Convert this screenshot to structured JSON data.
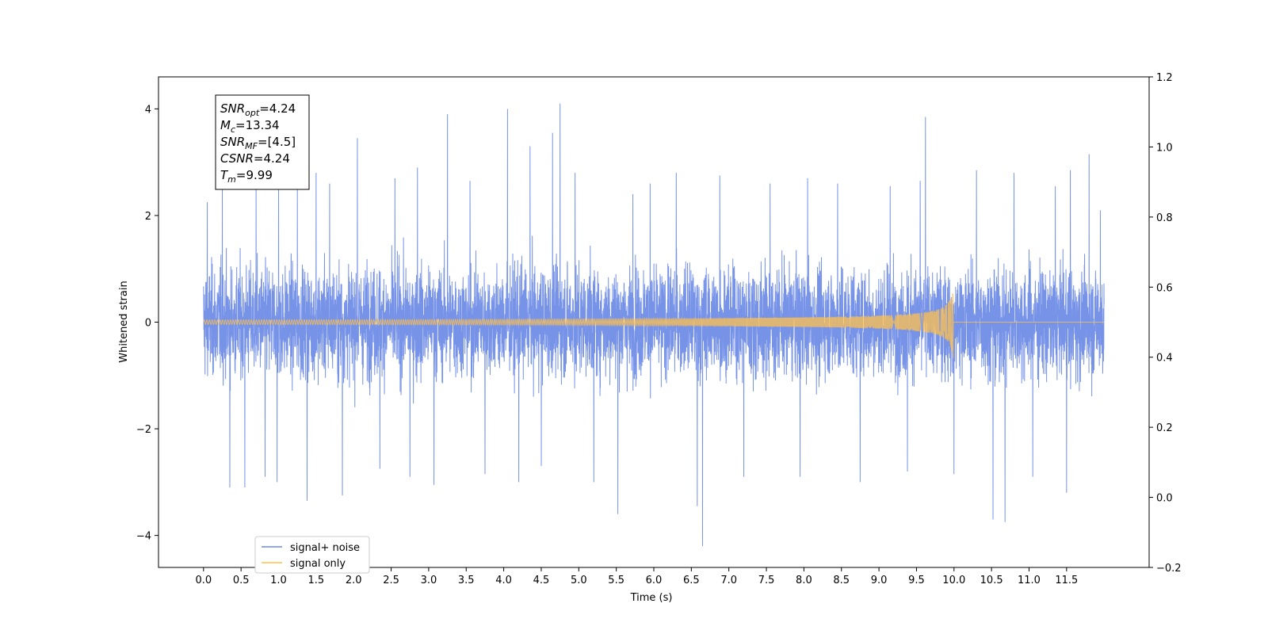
{
  "chart_data": {
    "type": "line",
    "title": "",
    "xlabel": "Time (s)",
    "ylabel": "Whitened strain",
    "xlim": [
      -0.6,
      12.6
    ],
    "ylim": [
      -4.6,
      4.6
    ],
    "y2lim": [
      -0.2,
      1.2
    ],
    "x_ticks": [
      0.0,
      0.5,
      1.0,
      1.5,
      2.0,
      2.5,
      3.0,
      3.5,
      4.0,
      4.5,
      5.0,
      5.5,
      6.0,
      6.5,
      7.0,
      7.5,
      8.0,
      8.5,
      9.0,
      9.5,
      10.0,
      10.5,
      11.0,
      11.5
    ],
    "x_tick_labels": [
      "0.0",
      "0.5",
      "1.0",
      "1.5",
      "2.0",
      "2.5",
      "3.0",
      "3.5",
      "4.0",
      "4.5",
      "5.0",
      "5.5",
      "6.0",
      "6.5",
      "7.0",
      "7.5",
      "8.0",
      "8.5",
      "9.0",
      "9.5",
      "10.0",
      "10.5",
      "11.0",
      "11.5"
    ],
    "y_ticks": [
      -4,
      -2,
      0,
      2,
      4
    ],
    "y_tick_labels": [
      "−4",
      "−2",
      "0",
      "2",
      "4"
    ],
    "y2_ticks": [
      -0.2,
      0.0,
      0.2,
      0.4,
      0.6,
      0.8,
      1.0,
      1.2
    ],
    "y2_tick_labels": [
      "−0.2",
      "0.0",
      "0.2",
      "0.4",
      "0.6",
      "0.8",
      "1.0",
      "1.2"
    ],
    "grid": false,
    "legend_position": "bottom-left",
    "series": [
      {
        "name": "signal+ noise",
        "color": "#6b8ae6",
        "x_range": [
          0.0,
          12.0
        ],
        "envelope_typical": 1.8,
        "spikes": [
          {
            "x": 0.05,
            "y": 2.25
          },
          {
            "x": 0.25,
            "y": 2.55
          },
          {
            "x": 0.35,
            "y": -3.1
          },
          {
            "x": 0.55,
            "y": -3.1
          },
          {
            "x": 0.7,
            "y": 2.6
          },
          {
            "x": 0.82,
            "y": -2.9
          },
          {
            "x": 0.98,
            "y": -3.0
          },
          {
            "x": 1.0,
            "y": 2.7
          },
          {
            "x": 1.25,
            "y": 2.6
          },
          {
            "x": 1.38,
            "y": -3.35
          },
          {
            "x": 1.5,
            "y": 2.8
          },
          {
            "x": 1.68,
            "y": 2.6
          },
          {
            "x": 1.85,
            "y": -3.25
          },
          {
            "x": 2.05,
            "y": 3.45
          },
          {
            "x": 2.35,
            "y": -2.75
          },
          {
            "x": 2.55,
            "y": 2.7
          },
          {
            "x": 2.75,
            "y": -2.9
          },
          {
            "x": 2.85,
            "y": 2.9
          },
          {
            "x": 3.07,
            "y": -3.05
          },
          {
            "x": 3.25,
            "y": 3.9
          },
          {
            "x": 3.55,
            "y": 2.65
          },
          {
            "x": 3.75,
            "y": -2.85
          },
          {
            "x": 4.05,
            "y": 4.0
          },
          {
            "x": 4.2,
            "y": -3.0
          },
          {
            "x": 4.35,
            "y": 3.3
          },
          {
            "x": 4.5,
            "y": -2.7
          },
          {
            "x": 4.65,
            "y": 3.55
          },
          {
            "x": 4.75,
            "y": 4.1
          },
          {
            "x": 4.95,
            "y": 2.8
          },
          {
            "x": 5.2,
            "y": -3.0
          },
          {
            "x": 5.52,
            "y": -3.6
          },
          {
            "x": 5.72,
            "y": 2.4
          },
          {
            "x": 5.95,
            "y": 2.6
          },
          {
            "x": 6.3,
            "y": 2.8
          },
          {
            "x": 6.58,
            "y": -3.45
          },
          {
            "x": 6.65,
            "y": -4.2
          },
          {
            "x": 6.88,
            "y": 2.75
          },
          {
            "x": 7.2,
            "y": -2.9
          },
          {
            "x": 7.55,
            "y": 2.6
          },
          {
            "x": 7.95,
            "y": -2.9
          },
          {
            "x": 8.05,
            "y": 2.7
          },
          {
            "x": 8.45,
            "y": 2.6
          },
          {
            "x": 8.75,
            "y": -3.0
          },
          {
            "x": 9.15,
            "y": 2.55
          },
          {
            "x": 9.38,
            "y": -2.8
          },
          {
            "x": 9.55,
            "y": 2.65
          },
          {
            "x": 9.62,
            "y": 3.85
          },
          {
            "x": 10.0,
            "y": -2.85
          },
          {
            "x": 10.3,
            "y": 2.85
          },
          {
            "x": 10.52,
            "y": -3.7
          },
          {
            "x": 10.68,
            "y": -3.75
          },
          {
            "x": 10.8,
            "y": 2.8
          },
          {
            "x": 11.05,
            "y": -2.9
          },
          {
            "x": 11.35,
            "y": 2.55
          },
          {
            "x": 11.5,
            "y": -3.2
          },
          {
            "x": 11.55,
            "y": 2.85
          },
          {
            "x": 11.8,
            "y": 3.15
          },
          {
            "x": 11.95,
            "y": 2.1
          }
        ]
      },
      {
        "name": "signal only",
        "color": "#ffc04d",
        "x_range": [
          0.0,
          12.0
        ],
        "merger_time": 9.99,
        "peak_amplitude": 0.72,
        "baseline": 0
      }
    ],
    "annotation": {
      "lines": [
        {
          "sym": "SNR",
          "sub": "opt",
          "rest": "=4.24"
        },
        {
          "sym": "M",
          "sub": "c",
          "rest": "=13.34"
        },
        {
          "sym": "SNR",
          "sub": "MF",
          "rest": "=[4.5]"
        },
        {
          "sym": "CSNR",
          "sub": "",
          "rest": "=4.24"
        },
        {
          "sym": "T",
          "sub": "m",
          "rest": "=9.99"
        }
      ]
    }
  }
}
